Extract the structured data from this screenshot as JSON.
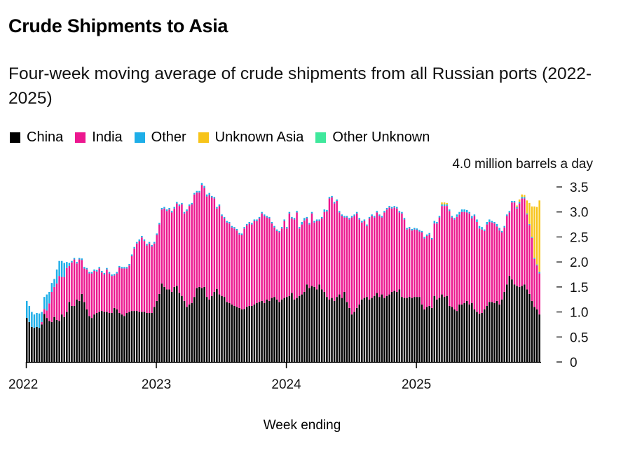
{
  "title": "Crude Shipments to Asia",
  "subtitle": "Four-week moving average of crude shipments from all Russian ports (2022-2025)",
  "chart_data": {
    "type": "bar",
    "stacked": true,
    "title": "Crude Shipments to Asia",
    "subtitle": "Four-week moving average of crude shipments from all Russian ports (2022-2025)",
    "xlabel": "Week ending",
    "ylabel": "million barrels a day",
    "y_unit_label": "4.0 million barrels a day",
    "ylim": [
      0,
      4.0
    ],
    "y_ticks": [
      "0",
      "0.5",
      "1.0",
      "1.5",
      "2.0",
      "2.5",
      "3.0",
      "3.5"
    ],
    "y_tick_values": [
      0,
      0.5,
      1.0,
      1.5,
      2.0,
      2.5,
      3.0,
      3.5
    ],
    "x_ticks": [
      "2022",
      "2023",
      "2024",
      "2025"
    ],
    "legend_position": "top-left",
    "grid": false,
    "series": [
      {
        "name": "China",
        "color": "#000000",
        "values": [
          0.88,
          0.8,
          0.7,
          0.68,
          0.7,
          0.68,
          0.75,
          0.96,
          0.88,
          0.82,
          0.8,
          0.9,
          0.84,
          0.82,
          0.95,
          0.9,
          1.0,
          1.2,
          1.12,
          1.12,
          1.25,
          1.22,
          1.36,
          1.2,
          1.05,
          0.92,
          0.88,
          0.95,
          0.98,
          1.0,
          1.02,
          1.0,
          1.0,
          0.98,
          0.98,
          1.08,
          1.05,
          0.98,
          0.95,
          0.92,
          0.98,
          1.0,
          1.02,
          1.02,
          1.02,
          1.0,
          1.0,
          1.0,
          0.98,
          0.98,
          0.98,
          1.1,
          1.22,
          1.36,
          1.57,
          1.5,
          1.45,
          1.45,
          1.4,
          1.5,
          1.52,
          1.38,
          1.32,
          1.22,
          1.1,
          1.15,
          1.18,
          1.3,
          1.48,
          1.5,
          1.48,
          1.5,
          1.3,
          1.25,
          1.32,
          1.4,
          1.46,
          1.35,
          1.32,
          1.3,
          1.2,
          1.18,
          1.15,
          1.12,
          1.1,
          1.08,
          1.05,
          1.06,
          1.1,
          1.12,
          1.12,
          1.15,
          1.18,
          1.2,
          1.22,
          1.18,
          1.25,
          1.22,
          1.28,
          1.3,
          1.25,
          1.2,
          1.25,
          1.28,
          1.3,
          1.32,
          1.38,
          1.25,
          1.28,
          1.32,
          1.35,
          1.4,
          1.55,
          1.48,
          1.52,
          1.5,
          1.45,
          1.55,
          1.45,
          1.4,
          1.3,
          1.25,
          1.28,
          1.22,
          1.3,
          1.35,
          1.28,
          1.4,
          1.2,
          1.08,
          0.95,
          1.0,
          1.08,
          1.15,
          1.25,
          1.28,
          1.3,
          1.25,
          1.28,
          1.32,
          1.38,
          1.3,
          1.35,
          1.28,
          1.32,
          1.35,
          1.4,
          1.42,
          1.4,
          1.45,
          1.3,
          1.28,
          1.28,
          1.3,
          1.28,
          1.3,
          1.3,
          1.3,
          1.15,
          1.05,
          1.1,
          1.12,
          1.08,
          1.32,
          1.25,
          1.28,
          1.35,
          1.3,
          1.32,
          1.12,
          1.1,
          1.05,
          1.02,
          1.15,
          1.15,
          1.18,
          1.22,
          1.15,
          1.18,
          1.05,
          1.0,
          0.96,
          0.98,
          1.05,
          1.12,
          1.2,
          1.2,
          1.18,
          1.22,
          1.15,
          1.25,
          1.4,
          1.55,
          1.72,
          1.65,
          1.55,
          1.52,
          1.5,
          1.52,
          1.55,
          1.45,
          1.36,
          1.22,
          1.1,
          1.05,
          0.95
        ]
      },
      {
        "name": "India",
        "color": "#ec178f",
        "values": [
          0.0,
          0.0,
          0.0,
          0.0,
          0.0,
          0.0,
          0.05,
          0.1,
          0.15,
          0.35,
          0.6,
          0.6,
          0.73,
          0.9,
          0.75,
          0.8,
          0.88,
          0.72,
          0.87,
          0.93,
          0.72,
          0.83,
          0.68,
          0.67,
          0.8,
          0.85,
          0.89,
          0.87,
          0.83,
          0.87,
          0.77,
          0.75,
          0.85,
          0.79,
          0.74,
          0.65,
          0.72,
          0.91,
          0.92,
          0.95,
          0.89,
          0.93,
          1.1,
          1.25,
          1.35,
          1.42,
          1.49,
          1.42,
          1.35,
          1.39,
          1.33,
          1.27,
          1.32,
          1.39,
          1.48,
          1.57,
          1.57,
          1.6,
          1.59,
          1.57,
          1.65,
          1.74,
          1.83,
          1.75,
          1.92,
          1.97,
          1.97,
          2.05,
          1.91,
          1.89,
          2.06,
          1.98,
          2.01,
          2.09,
          1.97,
          1.87,
          1.61,
          1.77,
          1.6,
          1.57,
          1.59,
          1.59,
          1.54,
          1.55,
          1.53,
          1.47,
          1.49,
          1.61,
          1.63,
          1.65,
          1.63,
          1.67,
          1.64,
          1.67,
          1.75,
          1.74,
          1.64,
          1.65,
          1.49,
          1.39,
          1.37,
          1.39,
          1.42,
          1.54,
          1.37,
          1.65,
          1.49,
          1.6,
          1.71,
          1.35,
          1.4,
          1.43,
          1.32,
          1.27,
          1.45,
          1.29,
          1.37,
          1.27,
          1.42,
          1.6,
          1.71,
          2.02,
          2.01,
          1.95,
          1.92,
          1.64,
          1.64,
          1.49,
          1.69,
          1.77,
          1.94,
          1.92,
          1.89,
          1.7,
          1.54,
          1.54,
          1.42,
          1.62,
          1.64,
          1.57,
          1.61,
          1.62,
          1.54,
          1.71,
          1.73,
          1.74,
          1.67,
          1.67,
          1.67,
          1.54,
          1.67,
          1.57,
          1.37,
          1.37,
          1.35,
          1.35,
          1.34,
          1.31,
          1.44,
          1.42,
          1.42,
          1.43,
          1.37,
          1.45,
          1.52,
          1.61,
          1.77,
          1.82,
          1.8,
          1.9,
          1.79,
          1.8,
          1.88,
          1.8,
          1.85,
          1.82,
          1.77,
          1.82,
          1.69,
          1.87,
          1.8,
          1.71,
          1.67,
          1.57,
          1.63,
          1.6,
          1.59,
          1.59,
          1.49,
          1.48,
          1.34,
          1.29,
          1.37,
          1.27,
          1.54,
          1.64,
          1.55,
          1.67,
          1.75,
          1.72,
          1.5,
          1.38,
          1.26,
          0.96,
          0.88,
          0.82
        ]
      },
      {
        "name": "Other",
        "color": "#1eaee8",
        "values": [
          0.34,
          0.32,
          0.3,
          0.27,
          0.28,
          0.29,
          0.2,
          0.24,
          0.32,
          0.23,
          0.18,
          0.16,
          0.28,
          0.3,
          0.32,
          0.28,
          0.12,
          0.06,
          0.03,
          0.03,
          0.03,
          0.03,
          0.03,
          0.03,
          0.03,
          0.03,
          0.03,
          0.03,
          0.03,
          0.03,
          0.03,
          0.03,
          0.03,
          0.03,
          0.03,
          0.03,
          0.03,
          0.03,
          0.03,
          0.03,
          0.03,
          0.03,
          0.03,
          0.03,
          0.03,
          0.03,
          0.03,
          0.03,
          0.03,
          0.03,
          0.03,
          0.03,
          0.03,
          0.03,
          0.03,
          0.03,
          0.03,
          0.03,
          0.03,
          0.03,
          0.03,
          0.03,
          0.03,
          0.03,
          0.03,
          0.03,
          0.03,
          0.03,
          0.03,
          0.03,
          0.04,
          0.04,
          0.04,
          0.04,
          0.03,
          0.03,
          0.03,
          0.03,
          0.03,
          0.03,
          0.03,
          0.03,
          0.03,
          0.03,
          0.03,
          0.03,
          0.03,
          0.03,
          0.03,
          0.03,
          0.03,
          0.03,
          0.03,
          0.03,
          0.03,
          0.03,
          0.03,
          0.03,
          0.03,
          0.03,
          0.03,
          0.03,
          0.03,
          0.03,
          0.03,
          0.03,
          0.03,
          0.03,
          0.03,
          0.03,
          0.05,
          0.05,
          0.03,
          0.03,
          0.03,
          0.03,
          0.03,
          0.03,
          0.03,
          0.05,
          0.03,
          0.03,
          0.03,
          0.03,
          0.03,
          0.03,
          0.03,
          0.03,
          0.03,
          0.03,
          0.03,
          0.03,
          0.03,
          0.03,
          0.03,
          0.03,
          0.03,
          0.03,
          0.03,
          0.03,
          0.03,
          0.03,
          0.03,
          0.03,
          0.03,
          0.03,
          0.03,
          0.03,
          0.03,
          0.03,
          0.03,
          0.03,
          0.03,
          0.03,
          0.03,
          0.03,
          0.03,
          0.03,
          0.03,
          0.03,
          0.03,
          0.03,
          0.03,
          0.05,
          0.03,
          0.03,
          0.03,
          0.03,
          0.03,
          0.03,
          0.03,
          0.03,
          0.05,
          0.05,
          0.05,
          0.05,
          0.05,
          0.03,
          0.05,
          0.03,
          0.05,
          0.05,
          0.05,
          0.03,
          0.05,
          0.05,
          0.03,
          0.03,
          0.05,
          0.05,
          0.03,
          0.03,
          0.03,
          0.03,
          0.03,
          0.03,
          0.03,
          0.03,
          0.03,
          0.03,
          0.02,
          0.02,
          0.02,
          0.02,
          0.02,
          0.03
        ]
      },
      {
        "name": "Unknown Asia",
        "color": "#f7c41a",
        "values": [
          0,
          0,
          0,
          0,
          0,
          0,
          0,
          0,
          0,
          0,
          0,
          0,
          0,
          0,
          0,
          0,
          0,
          0,
          0,
          0,
          0,
          0,
          0,
          0,
          0,
          0,
          0,
          0,
          0,
          0,
          0,
          0,
          0,
          0,
          0,
          0,
          0,
          0,
          0,
          0,
          0,
          0,
          0,
          0,
          0,
          0,
          0,
          0,
          0,
          0,
          0,
          0,
          0,
          0,
          0,
          0,
          0,
          0,
          0,
          0,
          0,
          0,
          0,
          0,
          0,
          0,
          0,
          0,
          0,
          0,
          0,
          0,
          0,
          0,
          0,
          0,
          0,
          0,
          0,
          0,
          0,
          0,
          0,
          0,
          0,
          0,
          0,
          0,
          0,
          0,
          0,
          0,
          0,
          0,
          0,
          0,
          0,
          0,
          0,
          0,
          0,
          0,
          0,
          0,
          0,
          0,
          0,
          0,
          0,
          0,
          0,
          0,
          0,
          0,
          0,
          0,
          0,
          0,
          0,
          0,
          0,
          0,
          0,
          0,
          0,
          0,
          0,
          0,
          0,
          0,
          0,
          0,
          0,
          0,
          0,
          0,
          0,
          0,
          0,
          0,
          0,
          0,
          0,
          0,
          0,
          0,
          0,
          0,
          0,
          0,
          0,
          0,
          0,
          0,
          0,
          0,
          0,
          0,
          0,
          0,
          0,
          0,
          0,
          0,
          0,
          0,
          0.04,
          0.04,
          0.03,
          0,
          0,
          0,
          0,
          0,
          0,
          0,
          0,
          0,
          0,
          0,
          0,
          0,
          0,
          0,
          0,
          0,
          0,
          0,
          0,
          0,
          0,
          0,
          0,
          0,
          0,
          0,
          0.03,
          0.05,
          0.05,
          0.04,
          0.26,
          0.42,
          0.61,
          1.03,
          1.15,
          1.43
        ]
      },
      {
        "name": "Other Unknown",
        "color": "#3fe89c",
        "values": []
      }
    ]
  }
}
